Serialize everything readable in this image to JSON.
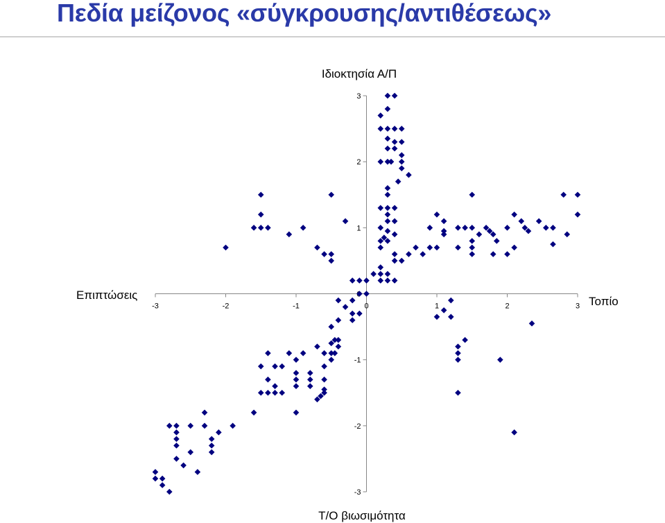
{
  "slide": {
    "title": "Πεδία μείζονος «σύγκρουσης/αντιθέσεως»"
  },
  "colors": {
    "marker": "#000080",
    "title": "#2a3aa8",
    "rule": "#cfcfcf"
  },
  "chart_data": {
    "type": "scatter",
    "axis_labels": {
      "top": "Ιδιοκτησία Α/Π",
      "bottom": "Τ/Ο βιωσιμότητα",
      "left": "Επιπτώσεις",
      "right": "Τοπίο"
    },
    "xlim": [
      -3,
      3
    ],
    "ylim": [
      -3,
      3
    ],
    "x_ticks": [
      "-3",
      "-2",
      "-1",
      "0",
      "1",
      "2",
      "3"
    ],
    "y_ticks": [
      "3",
      "2",
      "1",
      "0",
      "-1",
      "-2",
      "-3"
    ],
    "marker": "diamond",
    "grid": false,
    "points": [
      [
        0.3,
        3.0
      ],
      [
        0.4,
        3.0
      ],
      [
        0.3,
        2.8
      ],
      [
        0.2,
        2.7
      ],
      [
        0.2,
        2.5
      ],
      [
        0.3,
        2.5
      ],
      [
        0.4,
        2.5
      ],
      [
        0.5,
        2.5
      ],
      [
        0.3,
        2.35
      ],
      [
        0.4,
        2.3
      ],
      [
        0.5,
        2.3
      ],
      [
        0.3,
        2.2
      ],
      [
        0.4,
        2.2
      ],
      [
        0.5,
        2.1
      ],
      [
        0.2,
        2.0
      ],
      [
        0.3,
        2.0
      ],
      [
        0.35,
        2.0
      ],
      [
        0.5,
        2.0
      ],
      [
        0.5,
        1.9
      ],
      [
        0.6,
        1.8
      ],
      [
        0.45,
        1.7
      ],
      [
        0.3,
        1.6
      ],
      [
        0.3,
        1.5
      ],
      [
        -1.5,
        1.5
      ],
      [
        -0.5,
        1.5
      ],
      [
        1.5,
        1.5
      ],
      [
        2.8,
        1.5
      ],
      [
        3.0,
        1.5
      ],
      [
        0.2,
        1.3
      ],
      [
        0.3,
        1.3
      ],
      [
        0.4,
        1.3
      ],
      [
        0.3,
        1.2
      ],
      [
        -1.5,
        1.2
      ],
      [
        1.0,
        1.2
      ],
      [
        2.1,
        1.2
      ],
      [
        3.0,
        1.2
      ],
      [
        0.3,
        1.1
      ],
      [
        0.4,
        1.1
      ],
      [
        -0.3,
        1.1
      ],
      [
        1.1,
        1.1
      ],
      [
        2.2,
        1.1
      ],
      [
        2.45,
        1.1
      ],
      [
        -1.6,
        1.0
      ],
      [
        -1.5,
        1.0
      ],
      [
        -1.4,
        1.0
      ],
      [
        -0.9,
        1.0
      ],
      [
        0.2,
        1.0
      ],
      [
        0.9,
        1.0
      ],
      [
        1.3,
        1.0
      ],
      [
        1.4,
        1.0
      ],
      [
        1.5,
        1.0
      ],
      [
        1.7,
        1.0
      ],
      [
        2.0,
        1.0
      ],
      [
        2.25,
        1.0
      ],
      [
        2.55,
        1.0
      ],
      [
        2.65,
        1.0
      ],
      [
        0.3,
        0.95
      ],
      [
        1.1,
        0.95
      ],
      [
        1.75,
        0.95
      ],
      [
        2.3,
        0.95
      ],
      [
        -1.1,
        0.9
      ],
      [
        0.4,
        0.9
      ],
      [
        1.1,
        0.9
      ],
      [
        1.6,
        0.9
      ],
      [
        1.8,
        0.9
      ],
      [
        2.85,
        0.9
      ],
      [
        0.25,
        0.85
      ],
      [
        0.2,
        0.8
      ],
      [
        0.3,
        0.8
      ],
      [
        1.5,
        0.8
      ],
      [
        1.85,
        0.8
      ],
      [
        2.65,
        0.75
      ],
      [
        -2.0,
        0.7
      ],
      [
        -0.7,
        0.7
      ],
      [
        0.2,
        0.7
      ],
      [
        0.7,
        0.7
      ],
      [
        0.9,
        0.7
      ],
      [
        1.0,
        0.7
      ],
      [
        1.3,
        0.7
      ],
      [
        1.5,
        0.7
      ],
      [
        2.1,
        0.7
      ],
      [
        -0.6,
        0.6
      ],
      [
        -0.5,
        0.6
      ],
      [
        0.4,
        0.6
      ],
      [
        0.6,
        0.6
      ],
      [
        0.8,
        0.6
      ],
      [
        1.5,
        0.6
      ],
      [
        1.8,
        0.6
      ],
      [
        2.0,
        0.6
      ],
      [
        -0.5,
        0.5
      ],
      [
        0.4,
        0.5
      ],
      [
        0.5,
        0.5
      ],
      [
        0.2,
        0.4
      ],
      [
        0.1,
        0.3
      ],
      [
        0.2,
        0.3
      ],
      [
        0.3,
        0.3
      ],
      [
        -0.2,
        0.2
      ],
      [
        -0.1,
        0.2
      ],
      [
        0.0,
        0.2
      ],
      [
        0.2,
        0.2
      ],
      [
        0.3,
        0.2
      ],
      [
        0.4,
        0.2
      ],
      [
        -0.1,
        0.0
      ],
      [
        0.0,
        0.0
      ],
      [
        -0.2,
        -0.1
      ],
      [
        -0.4,
        -0.1
      ],
      [
        -0.3,
        -0.2
      ],
      [
        -0.2,
        -0.3
      ],
      [
        -0.1,
        -0.3
      ],
      [
        -0.4,
        -0.4
      ],
      [
        -0.2,
        -0.4
      ],
      [
        -0.5,
        -0.5
      ],
      [
        -0.45,
        -0.7
      ],
      [
        -0.4,
        -0.7
      ],
      [
        -0.5,
        -0.75
      ],
      [
        -0.4,
        -0.8
      ],
      [
        -0.7,
        -0.8
      ],
      [
        -0.5,
        -0.9
      ],
      [
        -0.6,
        -0.9
      ],
      [
        -0.45,
        -0.9
      ],
      [
        -0.9,
        -0.9
      ],
      [
        -1.1,
        -0.9
      ],
      [
        -1.4,
        -0.9
      ],
      [
        -0.5,
        -1.0
      ],
      [
        -1.0,
        -1.0
      ],
      [
        -0.6,
        -1.1
      ],
      [
        -1.2,
        -1.1
      ],
      [
        -1.3,
        -1.1
      ],
      [
        -1.5,
        -1.1
      ],
      [
        -1.0,
        -1.2
      ],
      [
        -0.8,
        -1.2
      ],
      [
        -0.6,
        -1.3
      ],
      [
        -1.4,
        -1.3
      ],
      [
        -1.0,
        -1.3
      ],
      [
        -0.8,
        -1.3
      ],
      [
        -1.3,
        -1.4
      ],
      [
        -1.0,
        -1.4
      ],
      [
        -0.6,
        -1.45
      ],
      [
        -0.8,
        -1.4
      ],
      [
        -1.5,
        -1.5
      ],
      [
        -1.4,
        -1.5
      ],
      [
        -1.3,
        -1.5
      ],
      [
        -1.2,
        -1.5
      ],
      [
        -0.6,
        -1.5
      ],
      [
        -0.65,
        -1.55
      ],
      [
        -0.7,
        -1.6
      ],
      [
        -1.6,
        -1.8
      ],
      [
        -1.0,
        -1.8
      ],
      [
        -2.3,
        -1.8
      ],
      [
        -2.8,
        -2.0
      ],
      [
        -2.7,
        -2.0
      ],
      [
        -2.5,
        -2.0
      ],
      [
        -2.3,
        -2.0
      ],
      [
        -1.9,
        -2.0
      ],
      [
        -2.7,
        -2.1
      ],
      [
        -2.1,
        -2.1
      ],
      [
        -2.7,
        -2.2
      ],
      [
        -2.2,
        -2.2
      ],
      [
        -2.2,
        -2.3
      ],
      [
        -2.7,
        -2.3
      ],
      [
        -2.2,
        -2.4
      ],
      [
        -2.5,
        -2.4
      ],
      [
        -2.7,
        -2.5
      ],
      [
        -2.6,
        -2.6
      ],
      [
        -2.4,
        -2.7
      ],
      [
        -3.0,
        -2.7
      ],
      [
        -3.0,
        -2.8
      ],
      [
        -2.9,
        -2.8
      ],
      [
        -2.9,
        -2.9
      ],
      [
        -2.8,
        -3.0
      ],
      [
        1.2,
        -0.1
      ],
      [
        1.1,
        -0.25
      ],
      [
        1.0,
        -0.35
      ],
      [
        1.2,
        -0.35
      ],
      [
        2.35,
        -0.45
      ],
      [
        1.4,
        -0.7
      ],
      [
        1.3,
        -0.8
      ],
      [
        1.3,
        -0.9
      ],
      [
        1.3,
        -1.0
      ],
      [
        1.9,
        -1.0
      ],
      [
        1.3,
        -1.5
      ],
      [
        2.1,
        -2.1
      ]
    ]
  }
}
